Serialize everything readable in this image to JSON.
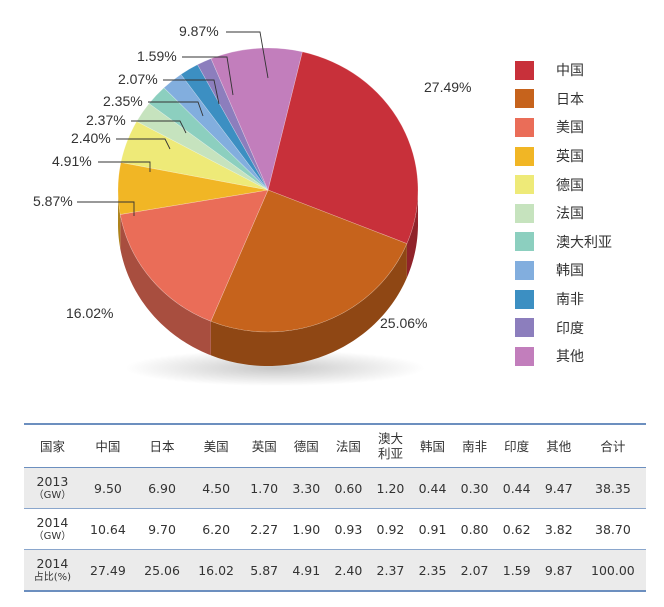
{
  "chart_data": {
    "type": "pie",
    "slices": [
      {
        "name": "中国",
        "value": 27.49,
        "label": "27.49%",
        "color": "#c8303a"
      },
      {
        "name": "日本",
        "value": 25.06,
        "label": "25.06%",
        "color": "#c6631c"
      },
      {
        "name": "美国",
        "value": 16.02,
        "label": "16.02%",
        "color": "#ea6d58"
      },
      {
        "name": "英国",
        "value": 5.87,
        "label": "5.87%",
        "color": "#f1b625"
      },
      {
        "name": "德国",
        "value": 4.91,
        "label": "4.91%",
        "color": "#eeea78"
      },
      {
        "name": "法国",
        "value": 2.4,
        "label": "2.40%",
        "color": "#c6e3be"
      },
      {
        "name": "澳大利亚",
        "value": 2.37,
        "label": "2.37%",
        "color": "#8ccfbf"
      },
      {
        "name": "韩国",
        "value": 2.35,
        "label": "2.35%",
        "color": "#82aede"
      },
      {
        "name": "南非",
        "value": 2.07,
        "label": "2.07%",
        "color": "#3c8fc2"
      },
      {
        "name": "印度",
        "value": 1.59,
        "label": "1.59%",
        "color": "#8c7ebd"
      },
      {
        "name": "其他",
        "value": 9.87,
        "label": "9.87%",
        "color": "#c27ebc"
      }
    ],
    "legend_position": "right"
  },
  "table": {
    "header": [
      "国家",
      "中国",
      "日本",
      "美国",
      "英国",
      "德国",
      "法国",
      "澳大\n利亚",
      "韩国",
      "南非",
      "印度",
      "其他",
      "合计"
    ],
    "rows": [
      {
        "label": "2013",
        "sublabel": "（GW）",
        "values": [
          "9.50",
          "6.90",
          "4.50",
          "1.70",
          "3.30",
          "0.60",
          "1.20",
          "0.44",
          "0.30",
          "0.44",
          "9.47",
          "38.35"
        ]
      },
      {
        "label": "2014",
        "sublabel": "（GW）",
        "values": [
          "10.64",
          "9.70",
          "6.20",
          "2.27",
          "1.90",
          "0.93",
          "0.92",
          "0.91",
          "0.80",
          "0.62",
          "3.82",
          "38.70"
        ]
      },
      {
        "label": "2014",
        "sublabel": "占比(%)",
        "values": [
          "27.49",
          "25.06",
          "16.02",
          "5.87",
          "4.91",
          "2.40",
          "2.37",
          "2.35",
          "2.07",
          "1.59",
          "9.87",
          "100.00"
        ]
      }
    ]
  }
}
